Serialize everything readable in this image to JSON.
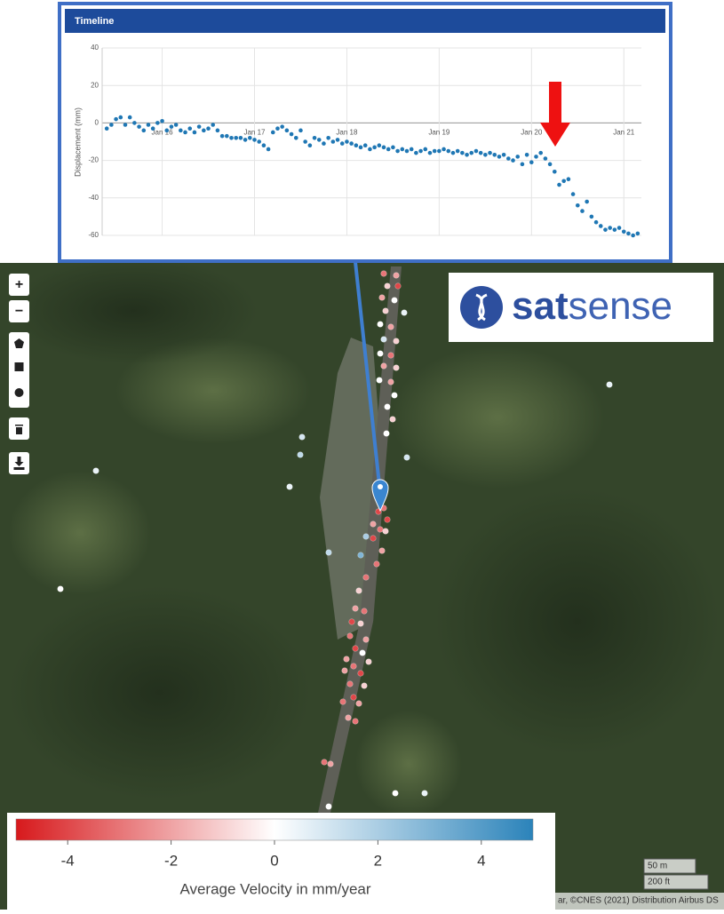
{
  "panel_title": "Timeline",
  "chart_data": {
    "type": "scatter",
    "ylabel": "Displacement (mm)",
    "color": "#1f77b4",
    "xlim": [
      2015.35,
      2021.19
    ],
    "ylim": [
      -60,
      40
    ],
    "xticks": [
      {
        "value": 2016,
        "label": "Jan 16"
      },
      {
        "value": 2017,
        "label": "Jan 17"
      },
      {
        "value": 2018,
        "label": "Jan 18"
      },
      {
        "value": 2019,
        "label": "Jan 19"
      },
      {
        "value": 2020,
        "label": "Jan 20"
      },
      {
        "value": 2021,
        "label": "Jan 21"
      }
    ],
    "yticks": [
      40,
      20,
      0,
      -20,
      -40,
      -60
    ],
    "grid": true,
    "x": [
      2015.4,
      2015.45,
      2015.5,
      2015.55,
      2015.6,
      2015.65,
      2015.7,
      2015.75,
      2015.8,
      2015.85,
      2015.9,
      2015.95,
      2016.0,
      2016.05,
      2016.1,
      2016.15,
      2016.2,
      2016.25,
      2016.3,
      2016.35,
      2016.4,
      2016.45,
      2016.5,
      2016.55,
      2016.6,
      2016.65,
      2016.7,
      2016.75,
      2016.8,
      2016.85,
      2016.9,
      2016.95,
      2017.0,
      2017.05,
      2017.1,
      2017.15,
      2017.2,
      2017.25,
      2017.3,
      2017.35,
      2017.4,
      2017.45,
      2017.5,
      2017.55,
      2017.6,
      2017.65,
      2017.7,
      2017.75,
      2017.8,
      2017.85,
      2017.9,
      2017.95,
      2018.0,
      2018.05,
      2018.1,
      2018.15,
      2018.2,
      2018.25,
      2018.3,
      2018.35,
      2018.4,
      2018.45,
      2018.5,
      2018.55,
      2018.6,
      2018.65,
      2018.7,
      2018.75,
      2018.8,
      2018.85,
      2018.9,
      2018.95,
      2019.0,
      2019.05,
      2019.1,
      2019.15,
      2019.2,
      2019.25,
      2019.3,
      2019.35,
      2019.4,
      2019.45,
      2019.5,
      2019.55,
      2019.6,
      2019.65,
      2019.7,
      2019.75,
      2019.8,
      2019.85,
      2019.9,
      2019.95,
      2020.0,
      2020.05,
      2020.1,
      2020.15,
      2020.2,
      2020.25,
      2020.3,
      2020.35,
      2020.4,
      2020.45,
      2020.5,
      2020.55,
      2020.6,
      2020.65,
      2020.7,
      2020.75,
      2020.8,
      2020.85,
      2020.9,
      2020.95,
      2021.0,
      2021.05,
      2021.1,
      2021.15
    ],
    "values": [
      -3,
      -1,
      2,
      3,
      -1,
      3,
      0,
      -2,
      -4,
      -1,
      -3,
      0,
      1,
      -4,
      -2,
      -1,
      -4,
      -5,
      -3,
      -5,
      -2,
      -4,
      -3,
      -1,
      -4,
      -7,
      -7,
      -8,
      -8,
      -8,
      -9,
      -8,
      -9,
      -10,
      -12,
      -14,
      -5,
      -3,
      -2,
      -4,
      -6,
      -8,
      -4,
      -10,
      -12,
      -8,
      -9,
      -11,
      -8,
      -10,
      -9,
      -11,
      -10,
      -11,
      -12,
      -13,
      -12,
      -14,
      -13,
      -12,
      -13,
      -14,
      -13,
      -15,
      -14,
      -15,
      -14,
      -16,
      -15,
      -14,
      -16,
      -15,
      -15,
      -14,
      -15,
      -16,
      -15,
      -16,
      -17,
      -16,
      -15,
      -16,
      -17,
      -16,
      -17,
      -18,
      -17,
      -19,
      -20,
      -18,
      -22,
      -17,
      -21,
      -18,
      -16,
      -19,
      -22,
      -26,
      -33,
      -31,
      -30,
      -38,
      -44,
      -47,
      -42,
      -50,
      -53,
      -55,
      -57,
      -56,
      -57,
      -56,
      -58,
      -59,
      -60,
      -59
    ]
  },
  "logo": [
    "sat",
    "sense"
  ],
  "map": {
    "velocities": [
      -3,
      -2,
      -1,
      -4,
      -2,
      0,
      -1,
      0.5,
      0,
      -2,
      1,
      -1,
      0,
      -3,
      -2,
      -1,
      0,
      -2,
      0,
      0,
      -1,
      0,
      1,
      1,
      1.5,
      0.5,
      0.5,
      0,
      0.5,
      -4,
      -3,
      -4,
      -2,
      -3,
      2,
      -4,
      -1,
      -2,
      3,
      -3,
      1.5,
      -3,
      -1,
      -2,
      -3,
      -4,
      -1,
      -3,
      -2,
      -4,
      0,
      -2,
      -1,
      -3,
      -2,
      -4,
      -3,
      -1,
      -4,
      -3,
      -2,
      -2,
      -3,
      -3,
      -2,
      0,
      0,
      0.5
    ]
  },
  "legend": {
    "title": "Average Velocity in mm/year",
    "lim": [
      -5,
      5
    ],
    "ticks": [
      -4,
      -2,
      0,
      2,
      4
    ]
  },
  "scale": [
    "50 m",
    "200 ft"
  ],
  "attribution": "ar, ©CNES (2021) Distribution Airbus DS"
}
